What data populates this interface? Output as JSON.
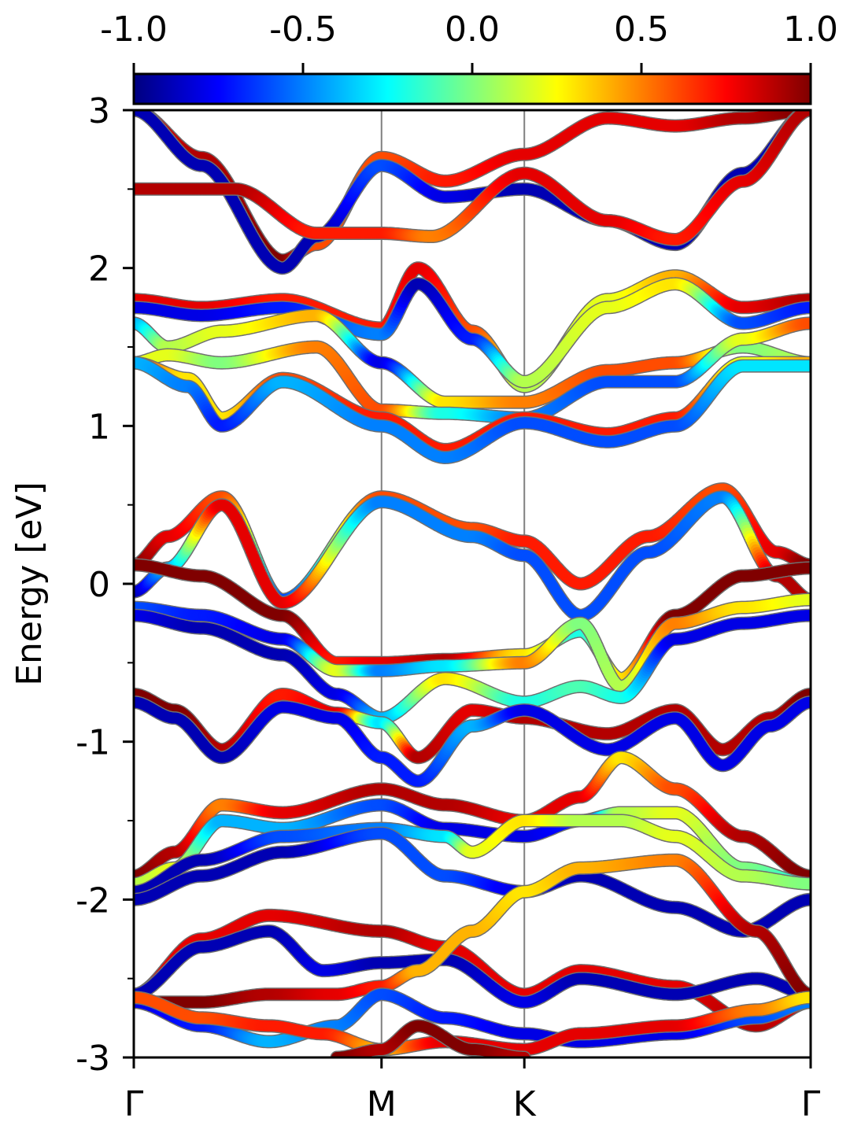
{
  "chart_data": {
    "type": "line",
    "title": "",
    "ylabel": "Energy [eV]",
    "xlabel": "",
    "ylim": [
      -3,
      3
    ],
    "yticks": [
      {
        "value": 3,
        "label": "3"
      },
      {
        "value": 2,
        "label": "2"
      },
      {
        "value": 1,
        "label": "1"
      },
      {
        "value": 0,
        "label": "0"
      },
      {
        "value": -1,
        "label": "-1"
      },
      {
        "value": -2,
        "label": "-2"
      },
      {
        "value": -3,
        "label": "-3"
      }
    ],
    "xlim": [
      0,
      1
    ],
    "kpath": [
      {
        "label": "Γ",
        "x": 0
      },
      {
        "label": "M",
        "x": 0.366
      },
      {
        "label": "K",
        "x": 0.577
      },
      {
        "label": "Γ",
        "x": 1
      }
    ],
    "colorbar": {
      "min": -1.0,
      "max": 1.0,
      "colormap": "jet",
      "ticks": [
        {
          "value": -1.0,
          "label": "-1.0"
        },
        {
          "value": -0.5,
          "label": "-0.5"
        },
        {
          "value": 0.0,
          "label": "0.0"
        },
        {
          "value": 0.5,
          "label": "0.5"
        },
        {
          "value": 1.0,
          "label": "1.0"
        }
      ]
    },
    "bands": [
      {
        "x": [
          0,
          0.1,
          0.22,
          0.27,
          0.366,
          0.46,
          0.577,
          0.7,
          0.8,
          0.9,
          1
        ],
        "y": [
          3.0,
          2.7,
          2.05,
          2.15,
          2.7,
          2.55,
          2.72,
          2.95,
          2.9,
          2.95,
          3.0
        ],
        "c": [
          0.8,
          0.9,
          1.0,
          0.6,
          0.6,
          0.7,
          0.8,
          0.8,
          0.8,
          0.9,
          1.0
        ]
      },
      {
        "x": [
          0,
          0.1,
          0.22,
          0.27,
          0.366,
          0.46,
          0.577,
          0.7,
          0.8,
          0.9,
          1
        ],
        "y": [
          3.0,
          2.65,
          2.0,
          2.2,
          2.65,
          2.45,
          2.5,
          2.3,
          2.15,
          2.6,
          3.0
        ],
        "c": [
          -0.9,
          -0.9,
          -0.9,
          -0.9,
          -0.6,
          -0.8,
          -0.9,
          -0.9,
          -0.9,
          -0.9,
          -0.9
        ]
      },
      {
        "x": [
          0,
          0.15,
          0.27,
          0.366,
          0.44,
          0.577,
          0.7,
          0.8,
          0.9,
          1
        ],
        "y": [
          2.5,
          2.5,
          2.22,
          2.22,
          2.2,
          2.6,
          2.3,
          2.18,
          2.55,
          3.0
        ],
        "c": [
          0.9,
          0.9,
          0.7,
          0.7,
          0.5,
          0.8,
          0.8,
          0.7,
          0.8,
          0.9
        ]
      },
      {
        "x": [
          0,
          0.1,
          0.22,
          0.366,
          0.42,
          0.5,
          0.577,
          0.7,
          0.8,
          0.9,
          1
        ],
        "y": [
          1.8,
          1.75,
          1.8,
          1.62,
          2.0,
          1.6,
          1.25,
          1.8,
          1.95,
          1.75,
          1.8
        ],
        "c": [
          0.8,
          0.8,
          0.7,
          0.7,
          0.8,
          0.6,
          0.1,
          0.2,
          0.4,
          0.8,
          0.9
        ]
      },
      {
        "x": [
          0,
          0.1,
          0.22,
          0.366,
          0.42,
          0.5,
          0.577,
          0.7,
          0.8,
          0.9,
          1
        ],
        "y": [
          1.75,
          1.7,
          1.75,
          1.58,
          1.9,
          1.55,
          1.28,
          1.75,
          1.9,
          1.65,
          1.75
        ],
        "c": [
          -0.8,
          -0.8,
          -0.7,
          -0.5,
          -0.9,
          -0.7,
          0.1,
          0.2,
          0.3,
          -0.6,
          -0.7
        ]
      },
      {
        "x": [
          0,
          0.05,
          0.13,
          0.27,
          0.366,
          0.46,
          0.577,
          0.7,
          0.8,
          0.9,
          1
        ],
        "y": [
          1.65,
          1.5,
          1.6,
          1.7,
          1.4,
          1.15,
          1.15,
          1.35,
          1.4,
          1.5,
          1.4
        ],
        "c": [
          -0.4,
          0.1,
          0.2,
          0.4,
          -0.8,
          0.3,
          0.5,
          0.6,
          0.6,
          0.0,
          0.1
        ]
      },
      {
        "x": [
          0,
          0.05,
          0.13,
          0.27,
          0.366,
          0.46,
          0.577,
          0.7,
          0.8,
          0.9,
          1
        ],
        "y": [
          1.4,
          1.45,
          1.4,
          1.5,
          1.1,
          1.08,
          1.05,
          1.28,
          1.28,
          1.55,
          1.65
        ],
        "c": [
          0.2,
          0.2,
          0.0,
          0.5,
          0.6,
          -0.2,
          -0.5,
          -0.6,
          -0.6,
          0.2,
          0.6
        ]
      },
      {
        "x": [
          0,
          0.08,
          0.13,
          0.22,
          0.366,
          0.46,
          0.577,
          0.7,
          0.8,
          0.9,
          1
        ],
        "y": [
          1.4,
          1.3,
          1.05,
          1.3,
          1.05,
          0.85,
          1.05,
          0.95,
          1.05,
          1.4,
          1.4
        ],
        "c": [
          0.6,
          0.3,
          0.3,
          0.6,
          0.7,
          0.7,
          0.7,
          0.7,
          0.7,
          0.2,
          0.4
        ]
      },
      {
        "x": [
          0,
          0.08,
          0.13,
          0.22,
          0.366,
          0.46,
          0.577,
          0.7,
          0.8,
          0.9,
          1
        ],
        "y": [
          1.4,
          1.25,
          1.0,
          1.28,
          1.0,
          0.8,
          1.02,
          0.9,
          1.0,
          1.38,
          1.38
        ],
        "c": [
          -0.4,
          -0.5,
          -0.7,
          -0.4,
          -0.5,
          -0.5,
          -0.6,
          -0.6,
          -0.6,
          -0.3,
          -0.3
        ]
      },
      {
        "x": [
          0,
          0.05,
          0.13,
          0.22,
          0.366,
          0.5,
          0.577,
          0.66,
          0.76,
          0.87,
          0.95,
          1
        ],
        "y": [
          0.12,
          0.3,
          0.55,
          -0.1,
          0.55,
          0.35,
          0.27,
          0.0,
          0.3,
          0.6,
          0.2,
          0.12
        ],
        "c": [
          1.0,
          0.8,
          0.6,
          -0.6,
          0.6,
          0.6,
          0.7,
          0.7,
          0.7,
          0.6,
          0.8,
          1.0
        ]
      },
      {
        "x": [
          0,
          0.05,
          0.13,
          0.22,
          0.366,
          0.5,
          0.577,
          0.66,
          0.76,
          0.87,
          0.95,
          1
        ],
        "y": [
          -0.05,
          0.1,
          0.5,
          -0.12,
          0.52,
          0.3,
          0.18,
          -0.2,
          0.2,
          0.55,
          0.05,
          -0.1
        ],
        "c": [
          -0.9,
          -0.4,
          0.8,
          0.8,
          -0.5,
          -0.5,
          -0.6,
          -0.6,
          -0.6,
          -0.5,
          0.9,
          0.9
        ]
      },
      {
        "x": [
          0,
          0.1,
          0.22,
          0.3,
          0.366,
          0.46,
          0.577,
          0.66,
          0.72,
          0.8,
          0.9,
          1
        ],
        "y": [
          0.12,
          0.05,
          -0.2,
          -0.5,
          -0.5,
          -0.48,
          -0.45,
          -0.3,
          -0.6,
          -0.2,
          0.05,
          0.1
        ],
        "c": [
          1.0,
          1.0,
          1.0,
          0.7,
          0.8,
          0.9,
          0.3,
          -0.2,
          0.3,
          1.0,
          1.0,
          1.0
        ]
      },
      {
        "x": [
          0,
          0.1,
          0.22,
          0.3,
          0.366,
          0.46,
          0.577,
          0.66,
          0.72,
          0.8,
          0.9,
          1
        ],
        "y": [
          -0.15,
          -0.2,
          -0.35,
          -0.55,
          -0.55,
          -0.52,
          -0.5,
          -0.25,
          -0.65,
          -0.25,
          -0.15,
          -0.1
        ],
        "c": [
          -0.6,
          -0.7,
          -0.8,
          0.2,
          -0.5,
          -0.3,
          0.5,
          0.0,
          0.1,
          0.5,
          0.3,
          0.2
        ]
      },
      {
        "x": [
          0,
          0.1,
          0.22,
          0.3,
          0.366,
          0.46,
          0.577,
          0.66,
          0.72,
          0.8,
          0.9,
          1
        ],
        "y": [
          -0.2,
          -0.28,
          -0.45,
          -0.7,
          -0.85,
          -0.6,
          -0.75,
          -0.65,
          -0.72,
          -0.35,
          -0.25,
          -0.2
        ],
        "c": [
          -0.8,
          -0.9,
          -0.9,
          -0.8,
          -0.4,
          0.3,
          -0.2,
          -0.1,
          -0.2,
          -0.8,
          -0.8,
          -0.8
        ]
      },
      {
        "x": [
          0,
          0.06,
          0.13,
          0.22,
          0.3,
          0.366,
          0.42,
          0.5,
          0.577,
          0.7,
          0.8,
          0.87,
          0.94,
          1
        ],
        "y": [
          -0.7,
          -0.8,
          -1.05,
          -0.7,
          -0.82,
          -0.88,
          -1.1,
          -0.8,
          -0.85,
          -0.95,
          -0.8,
          -1.05,
          -0.85,
          -0.7
        ],
        "c": [
          1.0,
          1.0,
          0.9,
          0.7,
          0.8,
          -0.3,
          0.9,
          0.8,
          0.9,
          0.9,
          0.9,
          0.9,
          0.9,
          1.0
        ]
      },
      {
        "x": [
          0,
          0.06,
          0.13,
          0.22,
          0.3,
          0.366,
          0.42,
          0.5,
          0.577,
          0.7,
          0.8,
          0.87,
          0.94,
          1
        ],
        "y": [
          -0.75,
          -0.85,
          -1.1,
          -0.78,
          -0.85,
          -1.1,
          -1.25,
          -0.9,
          -0.8,
          -1.05,
          -0.85,
          -1.15,
          -0.9,
          -0.75
        ],
        "c": [
          -0.9,
          -0.9,
          -0.9,
          -0.8,
          -0.8,
          -0.7,
          -0.7,
          -0.4,
          -0.8,
          -0.8,
          -0.8,
          -0.8,
          -0.8,
          -0.8
        ]
      },
      {
        "x": [
          0,
          0.06,
          0.13,
          0.22,
          0.366,
          0.46,
          0.577,
          0.66,
          0.72,
          0.8,
          0.9,
          1
        ],
        "y": [
          -1.85,
          -1.7,
          -1.4,
          -1.45,
          -1.3,
          -1.4,
          -1.5,
          -1.35,
          -1.1,
          -1.3,
          -1.6,
          -1.85
        ],
        "c": [
          1.0,
          0.9,
          0.5,
          0.8,
          0.9,
          0.9,
          0.8,
          0.8,
          0.3,
          0.6,
          0.9,
          1.0
        ]
      },
      {
        "x": [
          0,
          0.06,
          0.13,
          0.22,
          0.366,
          0.46,
          0.577,
          0.66,
          0.72,
          0.8,
          0.9,
          1
        ],
        "y": [
          -1.9,
          -1.8,
          -1.5,
          -1.55,
          -1.4,
          -1.55,
          -1.6,
          -1.5,
          -1.45,
          -1.45,
          -1.8,
          -1.9
        ],
        "c": [
          0.1,
          0.2,
          -0.4,
          -0.4,
          -0.6,
          -0.8,
          -0.8,
          -0.7,
          0.1,
          0.2,
          0.0,
          -0.2
        ]
      },
      {
        "x": [
          0,
          0.1,
          0.22,
          0.366,
          0.46,
          0.5,
          0.577,
          0.66,
          0.72,
          0.8,
          0.9,
          1
        ],
        "y": [
          -1.95,
          -1.75,
          -1.6,
          -1.55,
          -1.6,
          -1.7,
          -1.5,
          -1.5,
          -1.5,
          -1.6,
          -1.85,
          -1.9
        ],
        "c": [
          -0.9,
          -0.9,
          -0.6,
          -0.5,
          -0.3,
          0.2,
          0.3,
          0.1,
          0.1,
          0.2,
          0.1,
          0.0
        ]
      },
      {
        "x": [
          0,
          0.1,
          0.22,
          0.366,
          0.46,
          0.577,
          0.66,
          0.8,
          0.9,
          1
        ],
        "y": [
          -2.0,
          -1.85,
          -1.7,
          -1.58,
          -1.85,
          -1.95,
          -1.85,
          -2.05,
          -2.2,
          -2.0
        ],
        "c": [
          -0.9,
          -0.9,
          -0.9,
          -0.6,
          -0.6,
          -0.8,
          -0.9,
          -0.9,
          -0.9,
          -0.9
        ]
      },
      {
        "x": [
          0,
          0.1,
          0.2,
          0.366,
          0.46,
          0.577,
          0.66,
          0.8,
          0.92,
          1
        ],
        "y": [
          -2.6,
          -2.25,
          -2.1,
          -2.2,
          -2.3,
          -2.6,
          -2.45,
          -2.55,
          -2.8,
          -2.65
        ],
        "c": [
          0.8,
          0.8,
          0.8,
          0.9,
          0.8,
          0.8,
          0.8,
          0.8,
          0.9,
          0.8
        ]
      },
      {
        "x": [
          0,
          0.1,
          0.2,
          0.28,
          0.366,
          0.46,
          0.577,
          0.66,
          0.8,
          0.92,
          1
        ],
        "y": [
          -2.6,
          -2.3,
          -2.2,
          -2.45,
          -2.4,
          -2.38,
          -2.65,
          -2.5,
          -2.6,
          -2.5,
          -2.6
        ],
        "c": [
          -0.9,
          -0.9,
          -0.9,
          -0.8,
          -0.9,
          -0.9,
          -0.8,
          -0.9,
          -0.9,
          -0.9,
          -0.9
        ]
      },
      {
        "x": [
          0,
          0.1,
          0.2,
          0.3,
          0.366,
          0.42,
          0.5,
          0.577,
          0.66,
          0.8,
          0.92,
          1
        ],
        "y": [
          -2.65,
          -2.65,
          -2.6,
          -2.6,
          -2.55,
          -2.45,
          -2.2,
          -1.95,
          -1.8,
          -1.75,
          -2.2,
          -2.6
        ],
        "c": [
          1.0,
          1.0,
          0.9,
          0.8,
          0.7,
          0.4,
          0.4,
          0.3,
          0.4,
          0.5,
          0.9,
          1.0
        ]
      },
      {
        "x": [
          0,
          0.1,
          0.2,
          0.3,
          0.366,
          0.46,
          0.577,
          0.66,
          0.8,
          0.92,
          1
        ],
        "y": [
          -2.65,
          -2.8,
          -2.9,
          -2.8,
          -2.6,
          -2.75,
          -2.85,
          -2.9,
          -2.85,
          -2.75,
          -2.65
        ],
        "c": [
          -0.8,
          -0.7,
          -0.4,
          -0.5,
          -0.6,
          -0.7,
          -0.8,
          -0.8,
          -0.8,
          -0.6,
          -0.5
        ]
      },
      {
        "x": [
          0,
          0.1,
          0.2,
          0.28,
          0.366,
          0.46,
          0.577,
          0.66,
          0.8,
          0.92,
          1
        ],
        "y": [
          -2.62,
          -2.75,
          -2.8,
          -2.85,
          -2.95,
          -2.9,
          -2.95,
          -2.85,
          -2.8,
          -2.7,
          -2.62
        ],
        "c": [
          0.6,
          0.6,
          0.7,
          0.7,
          0.4,
          0.8,
          0.8,
          0.8,
          0.8,
          0.5,
          0.3
        ]
      },
      {
        "x": [
          0.3,
          0.366,
          0.42,
          0.5,
          0.577
        ],
        "y": [
          -3.0,
          -2.95,
          -2.8,
          -2.95,
          -3.0
        ],
        "c": [
          1.0,
          0.9,
          1.0,
          1.0,
          0.9
        ]
      }
    ]
  }
}
